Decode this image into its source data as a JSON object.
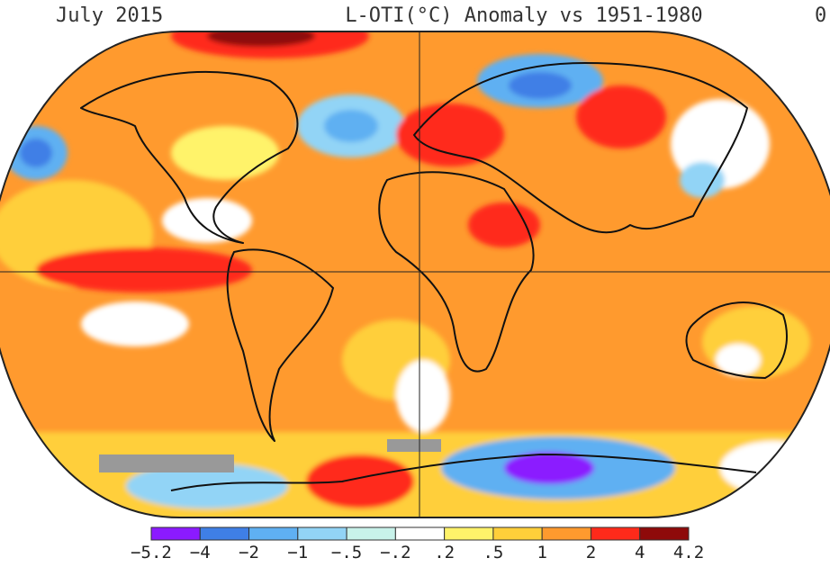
{
  "header": {
    "date": "July 2015",
    "title": "L-OTI(°C) Anomaly vs 1951-1980",
    "global_mean": "0"
  },
  "legend": {
    "labels": [
      "−5.2",
      "−4",
      "−2",
      "−1",
      "−.5",
      "−.2",
      ".2",
      ".5",
      "1",
      "2",
      "4",
      "4.2"
    ],
    "colors": [
      "#8b1aff",
      "#3f7fe6",
      "#5fb0f2",
      "#92d4f6",
      "#c8f2ea",
      "#ffffff",
      "#fff36a",
      "#ffcf3a",
      "#ff9a2e",
      "#ff2a1a",
      "#8e0a0a"
    ]
  }
}
